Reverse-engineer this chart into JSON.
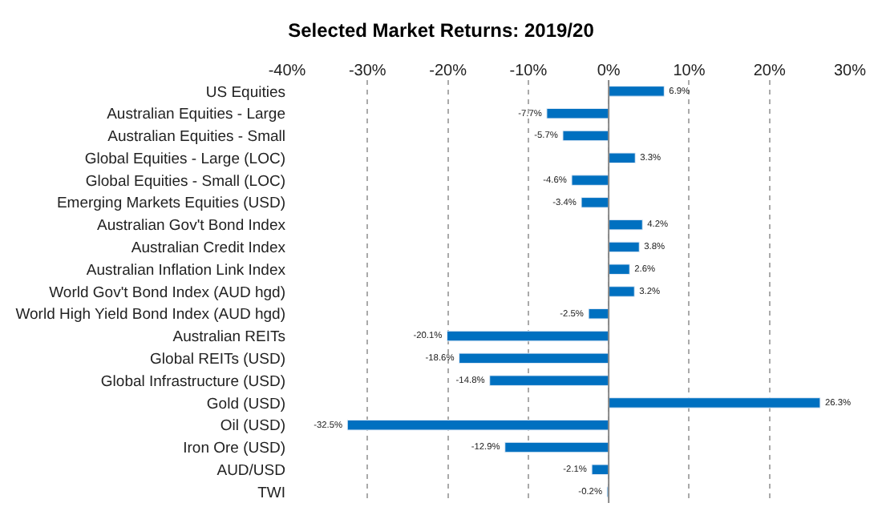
{
  "chart_data": {
    "type": "bar",
    "orientation": "horizontal",
    "title": "Selected Market Returns: 2019/20",
    "categories": [
      "US Equities",
      "Australian Equities - Large",
      "Australian Equities - Small",
      "Global Equities - Large (LOC)",
      "Global Equities - Small (LOC)",
      "Emerging Markets Equities (USD)",
      "Australian Gov't Bond Index",
      "Australian Credit Index",
      "Australian Inflation Link Index",
      "World Gov't Bond Index (AUD hgd)",
      "World High Yield Bond Index (AUD hgd)",
      "Australian REITs",
      "Global REITs (USD)",
      "Global Infrastructure (USD)",
      "Gold (USD)",
      "Oil (USD)",
      "Iron Ore (USD)",
      "AUD/USD",
      "TWI"
    ],
    "values": [
      6.9,
      -7.7,
      -5.7,
      3.3,
      -4.6,
      -3.4,
      4.2,
      3.8,
      2.6,
      3.2,
      -2.5,
      -20.1,
      -18.6,
      -14.8,
      26.3,
      -32.5,
      -12.9,
      -2.1,
      -0.2
    ],
    "value_labels": [
      "6.9%",
      "-7.7%",
      "-5.7%",
      "3.3%",
      "-4.6%",
      "-3.4%",
      "4.2%",
      "3.8%",
      "2.6%",
      "3.2%",
      "-2.5%",
      "-20.1%",
      "-18.6%",
      "-14.8%",
      "26.3%",
      "-32.5%",
      "-12.9%",
      "-2.1%",
      "-0.2%"
    ],
    "color": "#0070c0",
    "xlim": [
      -40,
      30
    ],
    "xticks": [
      {
        "value": -40,
        "label": "-40%"
      },
      {
        "value": -30,
        "label": "-30%"
      },
      {
        "value": -20,
        "label": "-20%"
      },
      {
        "value": -10,
        "label": "-10%"
      },
      {
        "value": 0,
        "label": "0%"
      },
      {
        "value": 10,
        "label": "10%"
      },
      {
        "value": 20,
        "label": "20%"
      },
      {
        "value": 30,
        "label": "30%"
      }
    ],
    "grid": "x",
    "legend": false
  }
}
